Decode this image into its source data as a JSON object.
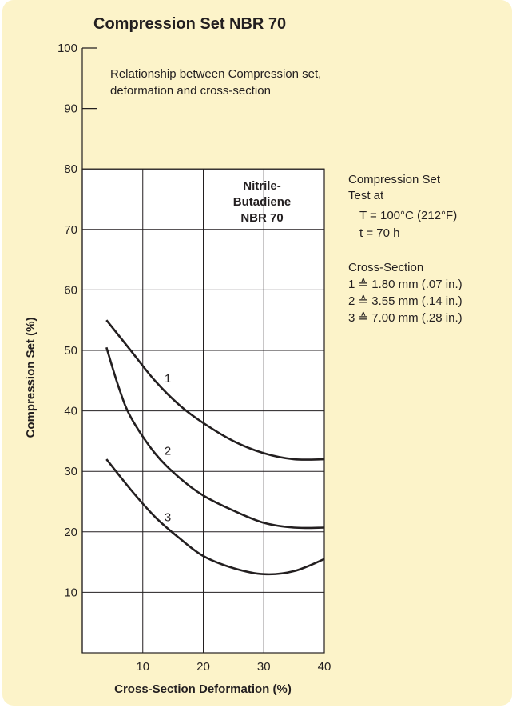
{
  "chart_data": {
    "type": "line",
    "title": "Compression Set NBR 70",
    "subtitle": [
      "Relationship between Compression set,",
      "deformation and cross-section"
    ],
    "xlabel": "Cross-Section Deformation (%)",
    "ylabel": "Compression Set (%)",
    "xlim": [
      0,
      40
    ],
    "ylim": [
      0,
      100
    ],
    "x_ticks": [
      10,
      20,
      30,
      40
    ],
    "y_ticks": [
      10,
      20,
      30,
      40,
      50,
      60,
      70,
      80,
      90,
      100
    ],
    "grid": true,
    "material_label": [
      "Nitrile-",
      "Butadiene",
      "NBR 70"
    ],
    "test_info": [
      "Compression Set",
      "Test at",
      "T = 100°C (212°F)",
      "t = 70 h"
    ],
    "cross_section_heading": "Cross-Section",
    "series": [
      {
        "name": "1",
        "legend": "1 ≙ 1.80 mm (.07 in.)",
        "points": [
          [
            4,
            55
          ],
          [
            8,
            50
          ],
          [
            12,
            45
          ],
          [
            16,
            41
          ],
          [
            20,
            38
          ],
          [
            25,
            35
          ],
          [
            30,
            33
          ],
          [
            35,
            32
          ],
          [
            40,
            32
          ]
        ]
      },
      {
        "name": "2",
        "legend": "2 ≙ 3.55 mm (.14 in.)",
        "points": [
          [
            4,
            50.5
          ],
          [
            6,
            44
          ],
          [
            8,
            39
          ],
          [
            12,
            33
          ],
          [
            16,
            29
          ],
          [
            20,
            26
          ],
          [
            25,
            23.5
          ],
          [
            30,
            21.5
          ],
          [
            35,
            20.7
          ],
          [
            40,
            20.7
          ]
        ]
      },
      {
        "name": "3",
        "legend": "3 ≙ 7.00 mm (.28 in.)",
        "points": [
          [
            4,
            32
          ],
          [
            8,
            27
          ],
          [
            12,
            22.5
          ],
          [
            16,
            19
          ],
          [
            20,
            16
          ],
          [
            25,
            14
          ],
          [
            30,
            13
          ],
          [
            35,
            13.5
          ],
          [
            40,
            15.5
          ]
        ]
      }
    ]
  }
}
